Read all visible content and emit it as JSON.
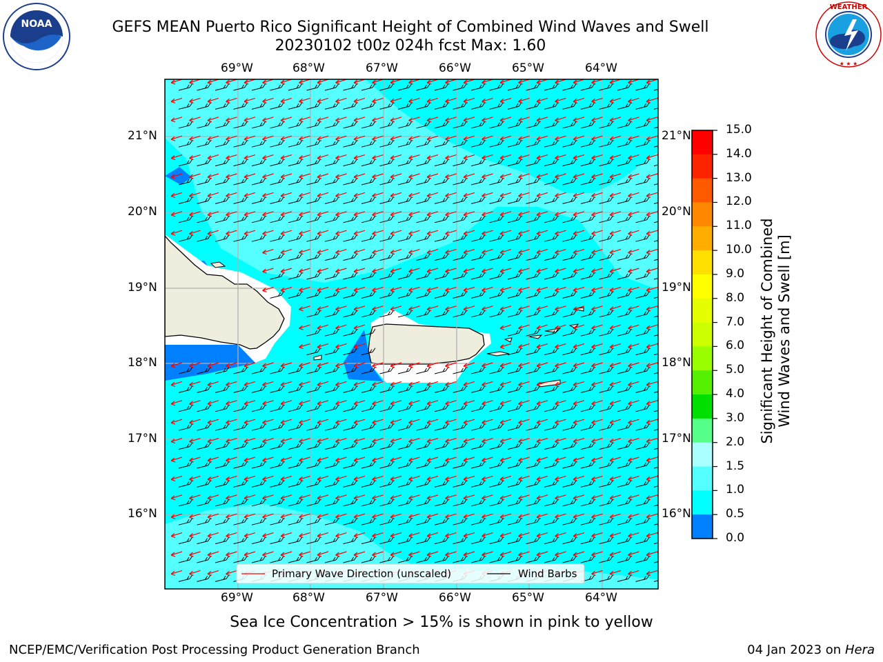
{
  "header": {
    "title_line1": "GEFS MEAN Puerto Rico Significant Height of Combined Wind Waves and Swell",
    "title_line2": "20230102 t00z 024h fcst   Max: 1.60"
  },
  "logos": {
    "noaa": {
      "wordmark": "NOAA",
      "icon": "noaa-seal-icon",
      "ring_text": "NATIONAL OCEANIC AND ATMOSPHERIC ADMINISTRATION · U.S. DEPARTMENT OF COMMERCE"
    },
    "nws": {
      "icon": "nws-seal-icon",
      "ring_text": "NATIONAL WEATHER SERVICE"
    }
  },
  "map": {
    "lon_labels": [
      "69°W",
      "68°W",
      "67°W",
      "66°W",
      "65°W",
      "64°W"
    ],
    "lat_labels": [
      "21°N",
      "20°N",
      "19°N",
      "18°N",
      "17°N",
      "16°N"
    ],
    "colors": {
      "ocean": "#00ffff",
      "ocean_light": "#55ffff",
      "shallow": "#0080ff",
      "land": "#efedde",
      "coast": "#000000",
      "grid": "#b0b0b0",
      "wave_arrow": "#ff0000",
      "wind_barb": "#000000"
    },
    "legend": {
      "wave_label": "Primary Wave Direction (unscaled)",
      "barb_label": "Wind Barbs"
    }
  },
  "colorbar": {
    "label_line1": "Significant Height of Combined",
    "label_line2": "Wind Waves and Swell [m]",
    "ticks": [
      "15.0",
      "14.0",
      "13.0",
      "12.0",
      "11.0",
      "10.0",
      "9.0",
      "8.0",
      "7.0",
      "6.0",
      "5.0",
      "4.0",
      "3.0",
      "2.0",
      "1.5",
      "1.0",
      "0.5",
      "0.0"
    ],
    "bands": [
      "#ff0000",
      "#ff2400",
      "#ff5a00",
      "#ff8800",
      "#ffae00",
      "#ffe000",
      "#ffff00",
      "#e6ff00",
      "#ccff00",
      "#99ff00",
      "#55ef00",
      "#00e000",
      "#55ff88",
      "#aaffff",
      "#55ffff",
      "#00ffff",
      "#0080ff",
      "#0000ff"
    ]
  },
  "notes": {
    "sea_ice": "Sea Ice Concentration > 15% is shown in pink to yellow"
  },
  "footer": {
    "left": "NCEP/EMC/Verification Post Processing Product Generation Branch",
    "right_date": "04 Jan 2023 on ",
    "right_host": "Hera"
  }
}
